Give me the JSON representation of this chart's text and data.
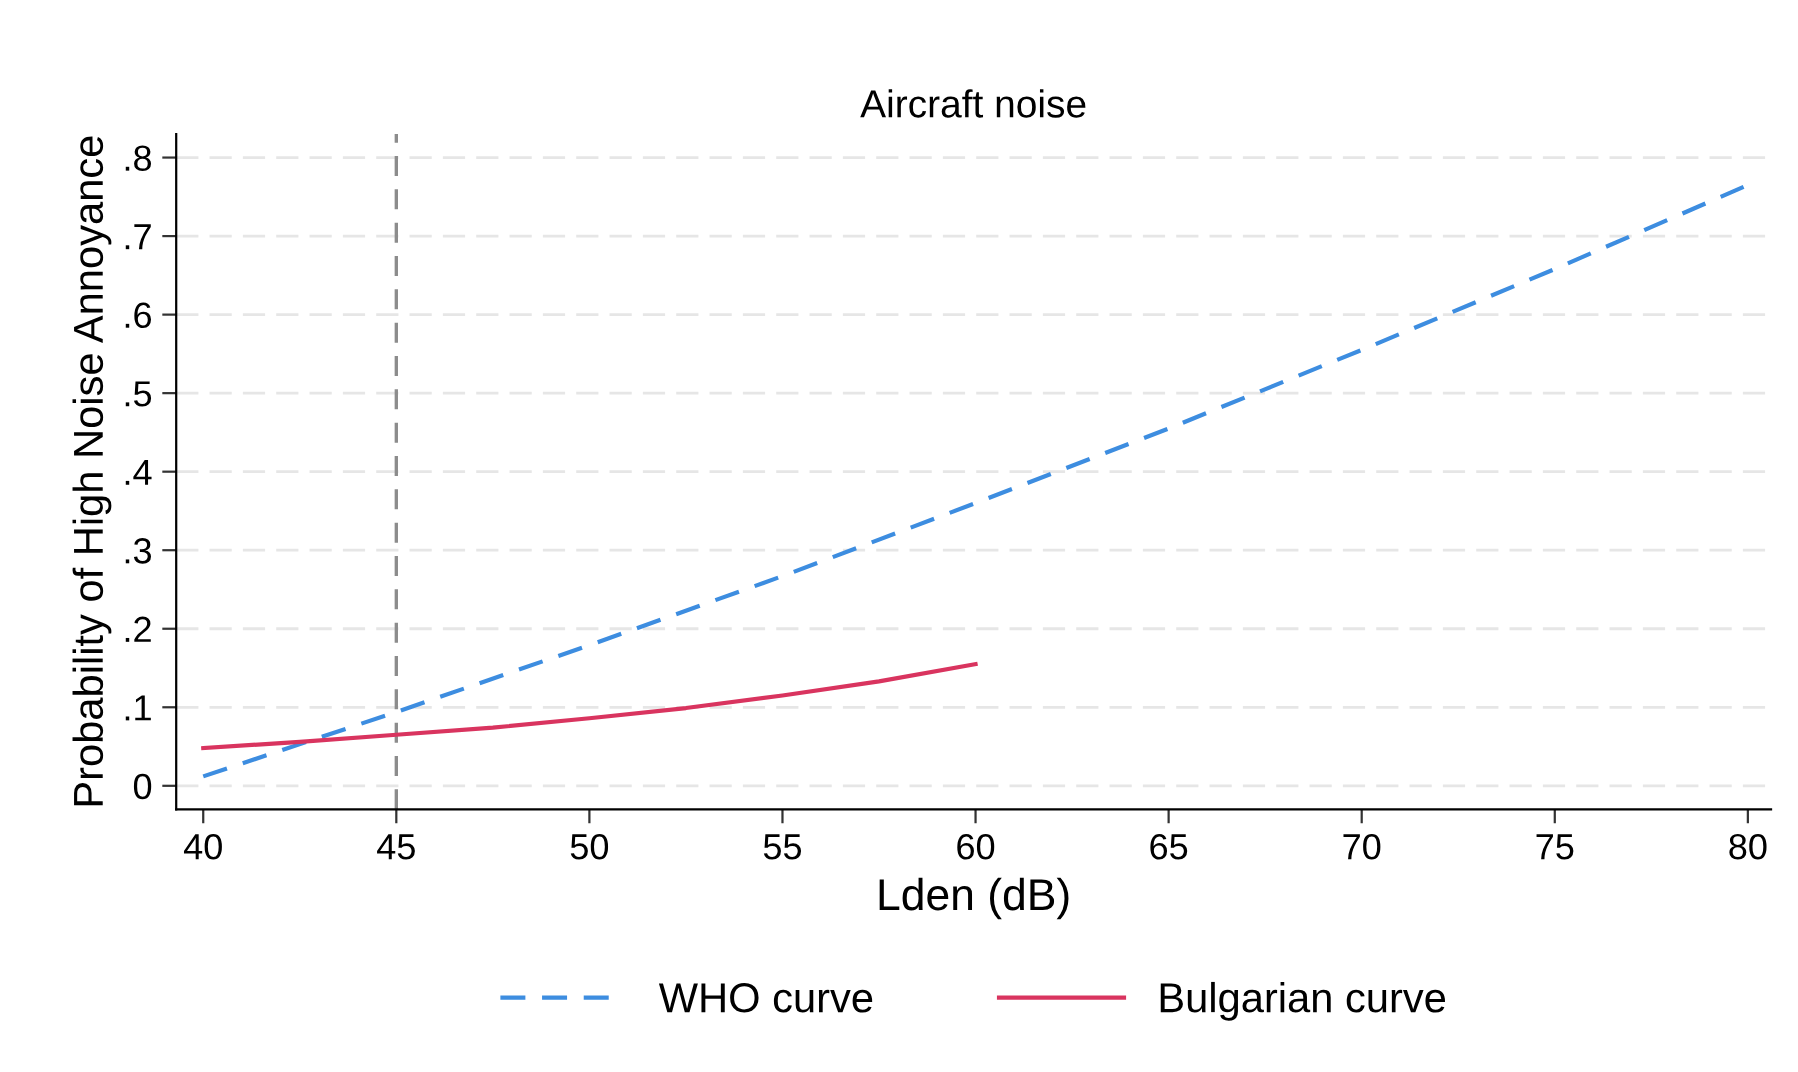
{
  "chart_data": {
    "type": "line",
    "title": "Aircraft noise",
    "xlabel": "Lden (dB)",
    "ylabel": "Probability of High Noise Annoyance",
    "series": [
      {
        "name": "WHO curve",
        "color": "#3d8de0",
        "line_style": "dashed",
        "x": [
          40,
          45,
          50,
          55,
          60,
          65,
          70,
          75,
          80
        ],
        "values": [
          0.012,
          0.094,
          0.179,
          0.267,
          0.36,
          0.455,
          0.555,
          0.658,
          0.765
        ]
      },
      {
        "name": "Bulgarian curve",
        "color": "#d9345f",
        "line_style": "solid",
        "x": [
          40,
          42.5,
          45,
          47.5,
          50,
          52.5,
          55,
          57.5,
          60
        ],
        "values": [
          0.048,
          0.056,
          0.065,
          0.074,
          0.086,
          0.099,
          0.115,
          0.133,
          0.155
        ]
      }
    ],
    "ref_lines": [
      {
        "axis": "x",
        "value": 45,
        "label": null,
        "color": "#8c8c8c",
        "line_style": "dashed"
      }
    ],
    "xlim": [
      39.3,
      80.6
    ],
    "ylim": [
      -0.03,
      0.83
    ],
    "xticks": [
      40,
      45,
      50,
      55,
      60,
      65,
      70,
      75,
      80
    ],
    "yticks": [
      {
        "value": 0,
        "label": "0"
      },
      {
        "value": 0.1,
        "label": ".1"
      },
      {
        "value": 0.2,
        "label": ".2"
      },
      {
        "value": 0.3,
        "label": ".3"
      },
      {
        "value": 0.4,
        "label": ".4"
      },
      {
        "value": 0.5,
        "label": ".5"
      },
      {
        "value": 0.6,
        "label": ".6"
      },
      {
        "value": 0.7,
        "label": ".7"
      },
      {
        "value": 0.8,
        "label": ".8"
      }
    ],
    "grid": "y",
    "legend": "bottom",
    "marker": "none"
  }
}
